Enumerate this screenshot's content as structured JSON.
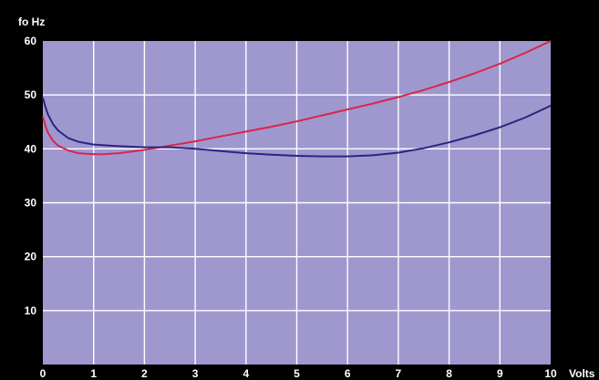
{
  "chart_data": {
    "type": "line",
    "title": "",
    "xlabel": "Volts",
    "ylabel": "fo Hz",
    "xlim": [
      0,
      10
    ],
    "ylim": [
      0,
      60
    ],
    "x_ticks": [
      0,
      1,
      2,
      3,
      4,
      5,
      6,
      7,
      8,
      9,
      10
    ],
    "y_ticks": [
      10,
      20,
      30,
      40,
      50,
      60
    ],
    "grid": true,
    "legend": "none",
    "plot_background": "#9f98cf",
    "grid_color": "#ffffff",
    "series": [
      {
        "color": "#d8264a",
        "x": [
          0.0,
          0.05,
          0.1,
          0.2,
          0.3,
          0.5,
          0.7,
          1.0,
          1.2,
          1.5,
          2.0,
          2.5,
          3.0,
          3.5,
          4.0,
          4.5,
          5.0,
          5.5,
          6.0,
          6.5,
          7.0,
          7.5,
          8.0,
          8.5,
          9.0,
          9.5,
          10.0
        ],
        "y": [
          46.0,
          44.3,
          43.0,
          41.5,
          40.6,
          39.7,
          39.2,
          39.0,
          39.0,
          39.2,
          39.8,
          40.6,
          41.4,
          42.3,
          43.2,
          44.1,
          45.1,
          46.2,
          47.3,
          48.4,
          49.6,
          50.9,
          52.4,
          54.0,
          55.8,
          57.8,
          60.0
        ]
      },
      {
        "color": "#2a2580",
        "x": [
          0.0,
          0.05,
          0.1,
          0.2,
          0.3,
          0.5,
          0.7,
          1.0,
          1.5,
          2.0,
          2.5,
          3.0,
          3.5,
          4.0,
          4.5,
          5.0,
          5.5,
          6.0,
          6.5,
          7.0,
          7.5,
          8.0,
          8.5,
          9.0,
          9.5,
          10.0
        ],
        "y": [
          49.5,
          47.8,
          46.4,
          44.6,
          43.4,
          42.0,
          41.3,
          40.8,
          40.5,
          40.3,
          40.3,
          40.0,
          39.6,
          39.2,
          38.9,
          38.7,
          38.6,
          38.6,
          38.8,
          39.3,
          40.1,
          41.2,
          42.5,
          44.0,
          45.8,
          48.0
        ]
      }
    ]
  }
}
